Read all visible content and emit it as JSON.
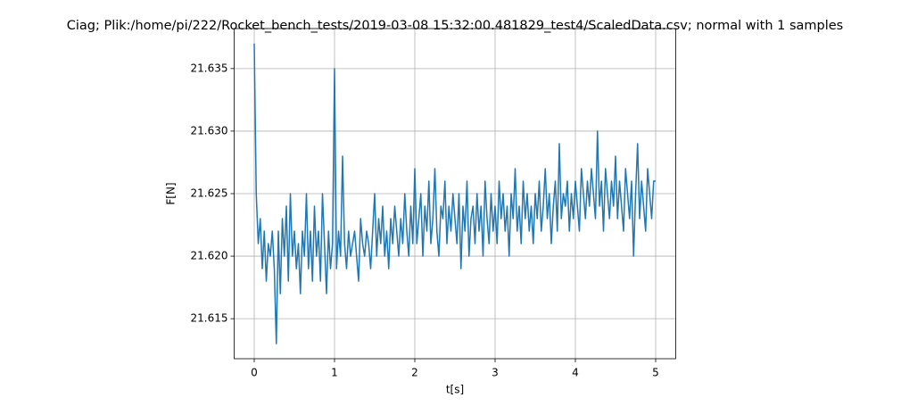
{
  "chart_data": {
    "type": "line",
    "title": "Ciag; Plik:/home/pi/222/Rocket_bench_tests/2019-03-08 15:32:00.481829_test4/ScaledData.csv; normal with 1 samples",
    "xlabel": "t[s]",
    "ylabel": "F[N]",
    "color": "#1f77b4",
    "grid": true,
    "xlim": [
      -0.25,
      5.25
    ],
    "ylim": [
      21.6118,
      21.6382
    ],
    "xticks": [
      0,
      1,
      2,
      3,
      4,
      5
    ],
    "yticks": [
      21.615,
      {
        "value": 21.62,
        "label": "21.620"
      },
      21.625,
      {
        "value": 21.63,
        "label": "21.630"
      },
      21.635
    ],
    "x": [
      0,
      0.025,
      0.05,
      0.075,
      0.1,
      0.125,
      0.15,
      0.175,
      0.2,
      0.225,
      0.25,
      0.275,
      0.3,
      0.325,
      0.35,
      0.375,
      0.4,
      0.425,
      0.45,
      0.475,
      0.5,
      0.525,
      0.55,
      0.575,
      0.6,
      0.625,
      0.65,
      0.675,
      0.7,
      0.725,
      0.75,
      0.775,
      0.8,
      0.825,
      0.85,
      0.875,
      0.9,
      0.925,
      0.95,
      0.975,
      1,
      1.025,
      1.05,
      1.075,
      1.1,
      1.125,
      1.15,
      1.175,
      1.2,
      1.225,
      1.25,
      1.275,
      1.3,
      1.325,
      1.35,
      1.375,
      1.4,
      1.425,
      1.45,
      1.475,
      1.5,
      1.525,
      1.55,
      1.575,
      1.6,
      1.625,
      1.65,
      1.675,
      1.7,
      1.725,
      1.75,
      1.775,
      1.8,
      1.825,
      1.85,
      1.875,
      1.9,
      1.925,
      1.95,
      1.975,
      2,
      2.025,
      2.05,
      2.075,
      2.1,
      2.125,
      2.15,
      2.175,
      2.2,
      2.225,
      2.25,
      2.275,
      2.3,
      2.325,
      2.35,
      2.375,
      2.4,
      2.425,
      2.45,
      2.475,
      2.5,
      2.525,
      2.55,
      2.575,
      2.6,
      2.625,
      2.65,
      2.675,
      2.7,
      2.725,
      2.75,
      2.775,
      2.8,
      2.825,
      2.85,
      2.875,
      2.9,
      2.925,
      2.95,
      2.975,
      3,
      3.025,
      3.05,
      3.075,
      3.1,
      3.125,
      3.15,
      3.175,
      3.2,
      3.225,
      3.25,
      3.275,
      3.3,
      3.325,
      3.35,
      3.375,
      3.4,
      3.425,
      3.45,
      3.475,
      3.5,
      3.525,
      3.55,
      3.575,
      3.6,
      3.625,
      3.65,
      3.675,
      3.7,
      3.725,
      3.75,
      3.775,
      3.8,
      3.825,
      3.85,
      3.875,
      3.9,
      3.925,
      3.95,
      3.975,
      4,
      4.025,
      4.05,
      4.075,
      4.1,
      4.125,
      4.15,
      4.175,
      4.2,
      4.225,
      4.25,
      4.275,
      4.3,
      4.325,
      4.35,
      4.375,
      4.4,
      4.425,
      4.45,
      4.475,
      4.5,
      4.525,
      4.55,
      4.575,
      4.6,
      4.625,
      4.65,
      4.675,
      4.7,
      4.725,
      4.75,
      4.775,
      4.8,
      4.825,
      4.85,
      4.875,
      4.9,
      4.925,
      4.95,
      4.975,
      5
    ],
    "values": [
      21.637,
      21.625,
      21.621,
      21.623,
      21.619,
      21.622,
      21.618,
      21.621,
      21.62,
      21.622,
      21.619,
      21.613,
      21.622,
      21.617,
      21.623,
      21.62,
      21.624,
      21.618,
      21.625,
      21.62,
      21.622,
      21.619,
      21.621,
      21.617,
      21.622,
      21.62,
      21.625,
      21.619,
      21.622,
      21.618,
      21.624,
      21.62,
      21.622,
      21.618,
      21.625,
      21.621,
      21.617,
      21.622,
      21.619,
      21.621,
      21.635,
      21.619,
      21.622,
      21.62,
      21.628,
      21.621,
      21.619,
      21.622,
      21.62,
      21.621,
      21.622,
      21.62,
      21.618,
      21.623,
      21.621,
      21.62,
      21.622,
      21.621,
      21.619,
      21.622,
      21.625,
      21.62,
      21.623,
      21.621,
      21.624,
      21.62,
      21.622,
      21.619,
      21.623,
      21.621,
      21.624,
      21.622,
      21.62,
      21.623,
      21.621,
      21.625,
      21.622,
      21.62,
      21.624,
      21.621,
      21.627,
      21.621,
      21.623,
      21.625,
      21.62,
      21.624,
      21.622,
      21.626,
      21.621,
      21.623,
      21.627,
      21.622,
      21.62,
      21.624,
      21.623,
      21.626,
      21.621,
      21.624,
      21.622,
      21.625,
      21.623,
      21.621,
      21.625,
      21.619,
      21.624,
      21.622,
      21.626,
      21.62,
      21.623,
      21.624,
      21.621,
      21.625,
      21.622,
      21.624,
      21.62,
      21.626,
      21.623,
      21.621,
      21.625,
      21.622,
      21.624,
      21.621,
      21.626,
      21.623,
      21.625,
      21.622,
      21.624,
      21.62,
      21.625,
      21.623,
      21.627,
      21.622,
      21.624,
      21.621,
      21.626,
      21.623,
      21.625,
      21.622,
      21.624,
      21.621,
      21.625,
      21.623,
      21.626,
      21.622,
      21.624,
      21.627,
      21.623,
      21.625,
      21.621,
      21.624,
      21.626,
      21.622,
      21.629,
      21.623,
      21.625,
      21.624,
      21.626,
      21.622,
      21.625,
      21.623,
      21.626,
      21.624,
      21.622,
      21.627,
      21.625,
      21.623,
      21.626,
      21.624,
      21.627,
      21.625,
      21.623,
      21.63,
      21.624,
      21.626,
      21.622,
      21.627,
      21.625,
      21.623,
      21.626,
      21.624,
      21.628,
      21.623,
      21.626,
      21.624,
      21.622,
      21.627,
      21.625,
      21.623,
      21.626,
      21.62,
      21.625,
      21.629,
      21.623,
      21.626,
      21.624,
      21.622,
      21.627,
      21.625,
      21.623,
      21.626,
      21.626
    ]
  }
}
